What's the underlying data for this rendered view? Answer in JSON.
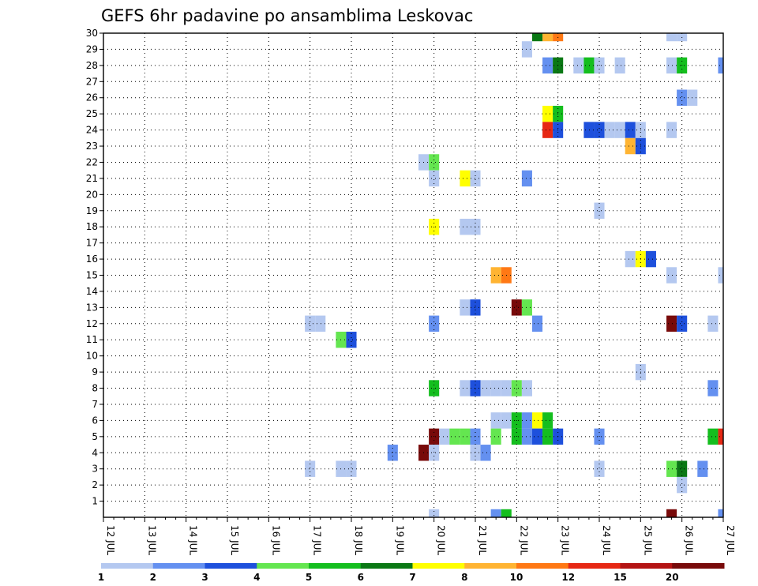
{
  "chart_data": {
    "type": "heatmap",
    "title": "GEFS 6hr padavine po ansamblima Leskovac",
    "x_tick_labels": [
      "12 JUL",
      "13 JUL",
      "14 JUL",
      "15 JUL",
      "16 JUL",
      "17 JUL",
      "18 JUL",
      "19 JUL",
      "20 JUL",
      "21 JUL",
      "22 JUL",
      "23 JUL",
      "24 JUL",
      "25 JUL",
      "26 JUL",
      "27 JUL"
    ],
    "y_tick_labels": [
      "1",
      "2",
      "3",
      "4",
      "5",
      "6",
      "7",
      "8",
      "9",
      "10",
      "11",
      "12",
      "13",
      "14",
      "15",
      "16",
      "17",
      "18",
      "19",
      "20",
      "21",
      "22",
      "23",
      "24",
      "25",
      "26",
      "27",
      "28",
      "29",
      "30"
    ],
    "xlim": [
      0,
      60
    ],
    "ylim": [
      0,
      30
    ],
    "x_step_hours": 6,
    "grid": "dotted",
    "legend": {
      "position": "bottom",
      "labels": [
        "1",
        "2",
        "3",
        "4",
        "5",
        "6",
        "7",
        "8",
        "10",
        "12",
        "15",
        "20"
      ],
      "colors": [
        "#b4c8f0",
        "#6490f0",
        "#1e50dc",
        "#64e650",
        "#14be1e",
        "#0a7814",
        "#ffff00",
        "#ffb432",
        "#ff7814",
        "#e62814",
        "#b41414",
        "#780a0a"
      ]
    },
    "cells": [
      [
        42,
        30,
        5
      ],
      [
        43,
        30,
        7
      ],
      [
        44,
        30,
        8
      ],
      [
        55,
        30,
        0
      ],
      [
        56,
        30,
        0
      ],
      [
        41,
        29,
        0
      ],
      [
        43,
        28,
        1
      ],
      [
        44,
        28,
        5
      ],
      [
        46,
        28,
        0
      ],
      [
        47,
        28,
        4
      ],
      [
        48,
        28,
        0
      ],
      [
        50,
        28,
        0
      ],
      [
        55,
        28,
        0
      ],
      [
        56,
        28,
        4
      ],
      [
        60,
        28,
        1
      ],
      [
        56,
        26,
        1
      ],
      [
        57,
        26,
        0
      ],
      [
        43,
        25,
        6
      ],
      [
        44,
        25,
        4
      ],
      [
        43,
        24,
        9
      ],
      [
        44,
        24,
        2
      ],
      [
        47,
        24,
        2
      ],
      [
        48,
        24,
        2
      ],
      [
        49,
        24,
        0
      ],
      [
        50,
        24,
        0
      ],
      [
        51,
        24,
        2
      ],
      [
        52,
        24,
        0
      ],
      [
        55,
        24,
        0
      ],
      [
        51,
        23,
        7
      ],
      [
        52,
        23,
        2
      ],
      [
        31,
        22,
        0
      ],
      [
        32,
        22,
        3
      ],
      [
        32,
        21,
        0
      ],
      [
        35,
        21,
        6
      ],
      [
        36,
        21,
        0
      ],
      [
        41,
        21,
        1
      ],
      [
        48,
        19,
        0
      ],
      [
        32,
        18,
        6
      ],
      [
        35,
        18,
        0
      ],
      [
        36,
        18,
        0
      ],
      [
        51,
        16,
        0
      ],
      [
        52,
        16,
        6
      ],
      [
        53,
        16,
        2
      ],
      [
        38,
        15,
        7
      ],
      [
        39,
        15,
        8
      ],
      [
        55,
        15,
        0
      ],
      [
        60,
        15,
        0
      ],
      [
        35,
        13,
        0
      ],
      [
        36,
        13,
        2
      ],
      [
        40,
        13,
        11
      ],
      [
        41,
        13,
        3
      ],
      [
        20,
        12,
        0
      ],
      [
        21,
        12,
        0
      ],
      [
        32,
        12,
        1
      ],
      [
        42,
        12,
        1
      ],
      [
        55,
        12,
        11
      ],
      [
        56,
        12,
        2
      ],
      [
        59,
        12,
        0
      ],
      [
        23,
        11,
        3
      ],
      [
        24,
        11,
        2
      ],
      [
        52,
        9,
        0
      ],
      [
        32,
        8,
        4
      ],
      [
        35,
        8,
        0
      ],
      [
        36,
        8,
        2
      ],
      [
        37,
        8,
        0
      ],
      [
        38,
        8,
        0
      ],
      [
        39,
        8,
        0
      ],
      [
        40,
        8,
        3
      ],
      [
        41,
        8,
        0
      ],
      [
        59,
        8,
        1
      ],
      [
        38,
        6,
        0
      ],
      [
        39,
        6,
        0
      ],
      [
        40,
        6,
        4
      ],
      [
        41,
        6,
        1
      ],
      [
        42,
        6,
        6
      ],
      [
        43,
        6,
        4
      ],
      [
        32,
        5,
        11
      ],
      [
        33,
        5,
        0
      ],
      [
        34,
        5,
        3
      ],
      [
        35,
        5,
        3
      ],
      [
        36,
        5,
        1
      ],
      [
        38,
        5,
        3
      ],
      [
        40,
        5,
        4
      ],
      [
        41,
        5,
        1
      ],
      [
        42,
        5,
        2
      ],
      [
        43,
        5,
        4
      ],
      [
        44,
        5,
        2
      ],
      [
        48,
        5,
        1
      ],
      [
        59,
        5,
        4
      ],
      [
        60,
        5,
        9
      ],
      [
        28,
        4,
        1
      ],
      [
        31,
        4,
        11
      ],
      [
        32,
        4,
        0
      ],
      [
        36,
        4,
        0
      ],
      [
        37,
        4,
        1
      ],
      [
        20,
        3,
        0
      ],
      [
        23,
        3,
        0
      ],
      [
        24,
        3,
        0
      ],
      [
        48,
        3,
        0
      ],
      [
        55,
        3,
        3
      ],
      [
        56,
        3,
        5
      ],
      [
        58,
        3,
        1
      ],
      [
        56,
        2,
        0
      ],
      [
        32,
        0,
        0
      ],
      [
        38,
        0,
        1
      ],
      [
        39,
        0,
        4
      ],
      [
        55,
        0,
        11
      ],
      [
        60,
        0,
        1
      ]
    ]
  }
}
